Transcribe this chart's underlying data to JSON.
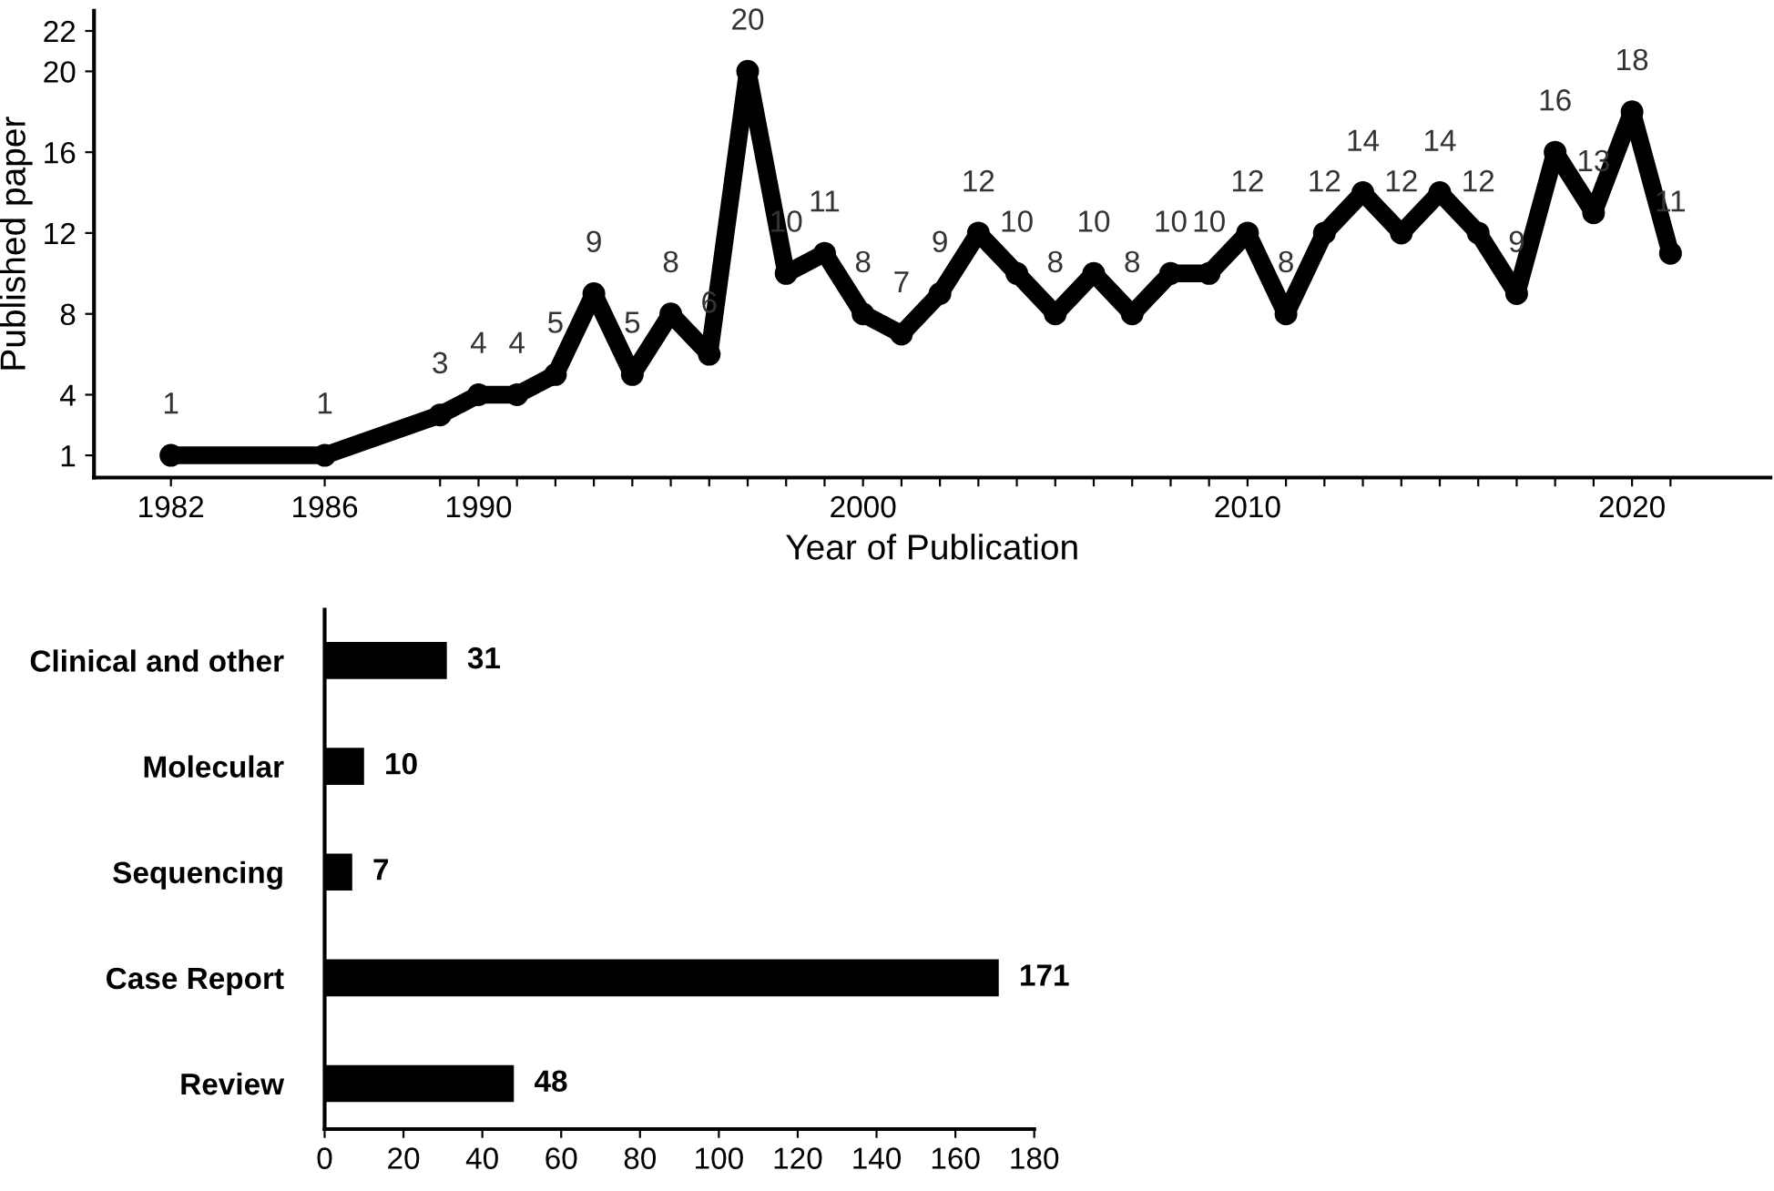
{
  "chart_data": [
    {
      "type": "line",
      "xlabel": "Year of Publication",
      "ylabel": "Published paper",
      "x": [
        1982,
        1986,
        1989,
        1990,
        1991,
        1992,
        1993,
        1994,
        1995,
        1996,
        1997,
        1998,
        1999,
        2000,
        2001,
        2002,
        2003,
        2004,
        2005,
        2006,
        2007,
        2008,
        2009,
        2010,
        2011,
        2012,
        2013,
        2014,
        2015,
        2016,
        2017,
        2018,
        2019,
        2020,
        2021
      ],
      "series": [
        {
          "color": "#000000",
          "values": [
            1,
            1,
            3,
            4,
            4,
            5,
            9,
            5,
            8,
            6,
            20,
            10,
            11,
            8,
            7,
            9,
            12,
            10,
            8,
            10,
            8,
            10,
            10,
            12,
            8,
            12,
            14,
            12,
            14,
            12,
            9,
            16,
            13,
            18,
            11
          ]
        }
      ],
      "data_labels": true,
      "marker": "circle",
      "line_style": "solid",
      "grid": false,
      "legend": false,
      "xlim": [
        1980,
        2023.6
      ],
      "ylim": [
        -0.1,
        23
      ],
      "xticks": [
        1982,
        1986,
        {
          "value": 1989,
          "label": null
        },
        1990,
        {
          "value": 1991,
          "label": null
        },
        {
          "value": 1992,
          "label": null
        },
        {
          "value": 1993,
          "label": null
        },
        {
          "value": 1994,
          "label": null
        },
        {
          "value": 1995,
          "label": null
        },
        {
          "value": 1996,
          "label": null
        },
        {
          "value": 1997,
          "label": null
        },
        {
          "value": 1998,
          "label": null
        },
        {
          "value": 1999,
          "label": null
        },
        2000,
        {
          "value": 2001,
          "label": null
        },
        {
          "value": 2002,
          "label": null
        },
        {
          "value": 2003,
          "label": null
        },
        {
          "value": 2004,
          "label": null
        },
        {
          "value": 2005,
          "label": null
        },
        {
          "value": 2006,
          "label": null
        },
        {
          "value": 2007,
          "label": null
        },
        {
          "value": 2008,
          "label": null
        },
        {
          "value": 2009,
          "label": null
        },
        2010,
        {
          "value": 2011,
          "label": null
        },
        {
          "value": 2012,
          "label": null
        },
        {
          "value": 2013,
          "label": null
        },
        {
          "value": 2014,
          "label": null
        },
        {
          "value": 2015,
          "label": null
        },
        {
          "value": 2016,
          "label": null
        },
        {
          "value": 2017,
          "label": null
        },
        {
          "value": 2018,
          "label": null
        },
        {
          "value": 2019,
          "label": null
        },
        2020,
        {
          "value": 2021,
          "label": null
        }
      ],
      "yticks": [
        1,
        4,
        8,
        12,
        16,
        20,
        22
      ]
    },
    {
      "type": "bar",
      "orientation": "horizontal",
      "categories": [
        "Clinical and other",
        "Molecular",
        "Sequencing",
        "Case Report",
        "Review"
      ],
      "values": [
        31,
        10,
        7,
        171,
        48
      ],
      "color": "#000000",
      "data_labels": true,
      "grid": false,
      "legend": false,
      "xlim": [
        0,
        180
      ],
      "xticks": [
        0,
        20,
        40,
        60,
        80,
        100,
        120,
        140,
        160,
        180
      ]
    }
  ]
}
